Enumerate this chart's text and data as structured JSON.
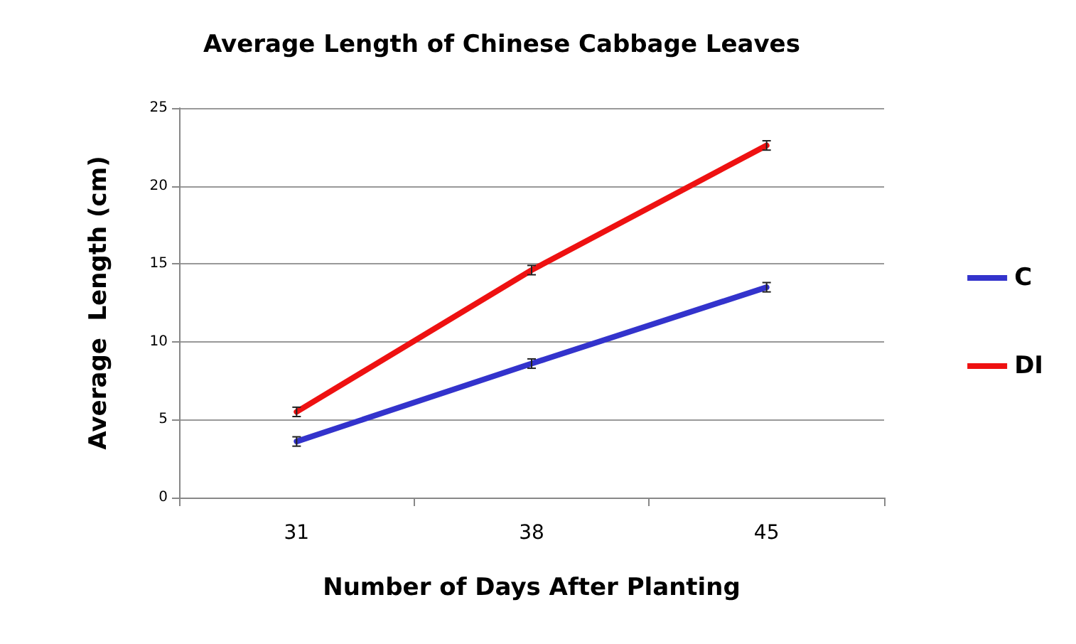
{
  "chart_data": {
    "type": "line",
    "title": "Average Length of Chinese Cabbage Leaves",
    "xlabel": "Number of Days After Planting",
    "ylabel": "Average  Length (cm)",
    "categories": [
      "31",
      "38",
      "45"
    ],
    "series": [
      {
        "name": "C",
        "color": "#3333cc",
        "values": [
          3.6,
          8.6,
          13.5
        ],
        "errors": [
          0.3,
          0.3,
          0.3
        ]
      },
      {
        "name": "DI",
        "color": "#ee1111",
        "values": [
          5.5,
          14.6,
          22.6
        ],
        "errors": [
          0.3,
          0.3,
          0.3
        ]
      }
    ],
    "ylim": [
      0,
      25
    ],
    "yticks": [
      0,
      5,
      10,
      15,
      20,
      25
    ],
    "grid": "y",
    "legend": "right",
    "marker": "none",
    "line_style": "solid"
  }
}
